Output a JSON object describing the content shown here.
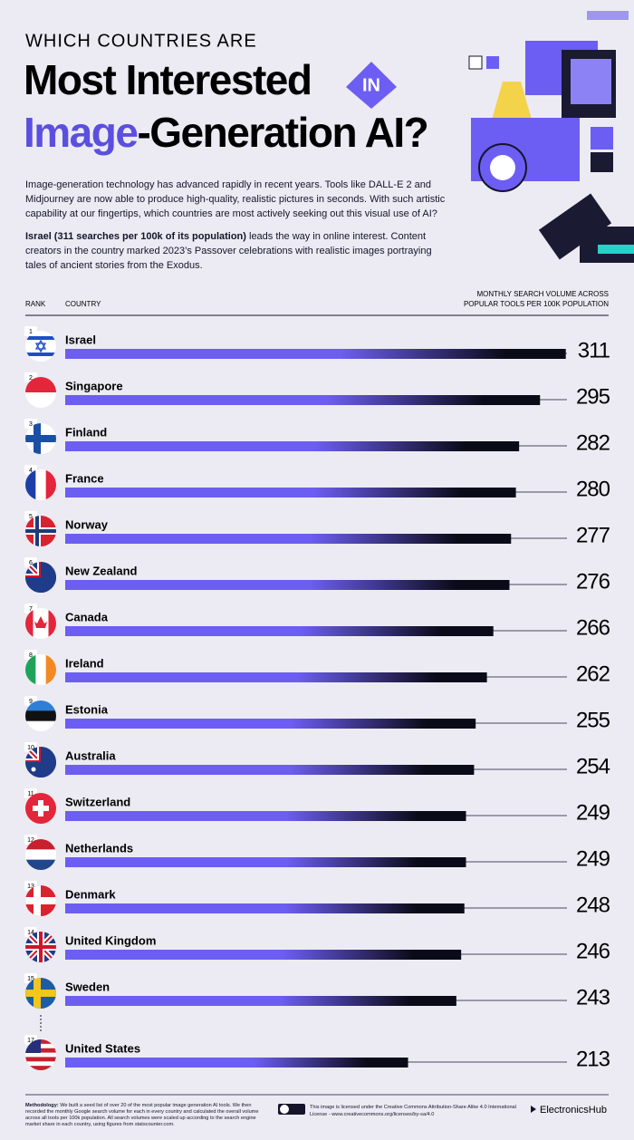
{
  "header": {
    "kicker": "WHICH COUNTRIES ARE",
    "title_line1": "Most Interested",
    "title_badge": "IN",
    "title_highlight": "Image",
    "title_line2": "-Generation AI?"
  },
  "intro": {
    "paragraph1": "Image-generation technology has advanced rapidly in recent years. Tools like DALL-E 2 and Midjourney are now able to produce high-quality, realistic pictures in seconds. With such artistic capability at our fingertips, which countries are most actively seeking out this visual use of AI?",
    "paragraph2_bold": "Israel (311 searches per 100k of its population)",
    "paragraph2_rest": " leads the way in online interest. Content creators in the country marked 2023’s Passover celebrations with realistic images portraying tales of ancient stories from the Exodus."
  },
  "chart_data": {
    "type": "bar",
    "orientation": "horizontal",
    "column_rank": "RANK",
    "column_country": "COUNTRY",
    "value_label_lines": [
      "MONTHLY SEARCH VOLUME ACROSS",
      "POPULAR TOOLS PER 100K POPULATION"
    ],
    "ranks": [
      1,
      2,
      3,
      4,
      5,
      6,
      7,
      8,
      9,
      10,
      11,
      12,
      13,
      14,
      15,
      17
    ],
    "categories": [
      "Israel",
      "Singapore",
      "Finland",
      "France",
      "Norway",
      "New Zealand",
      "Canada",
      "Ireland",
      "Estonia",
      "Australia",
      "Switzerland",
      "Netherlands",
      "Denmark",
      "United Kingdom",
      "Sweden",
      "United States"
    ],
    "values": [
      311,
      295,
      282,
      280,
      277,
      276,
      266,
      262,
      255,
      254,
      249,
      249,
      248,
      246,
      243,
      213
    ],
    "colors": [
      "#6c5ef2",
      "#0b0a18"
    ],
    "xlim": [
      0,
      350
    ]
  },
  "footer": {
    "methodology_label": "Methodology:",
    "methodology": " We built a seed list of over 20 of the most popular image generation AI tools. We then recorded the monthly Google search volume for each in every country and calculated the overall volume across all tools per 100k population. All search volumes were scaled up according to the search engine market share in each country, using figures from statscounter.com.",
    "license": "This image is licensed under the Creative Commons Attribution-Share Alike 4.0 International License - www.creativecommons.org/licenses/by-sa/4.0",
    "brand": "ElectronicsHub"
  }
}
